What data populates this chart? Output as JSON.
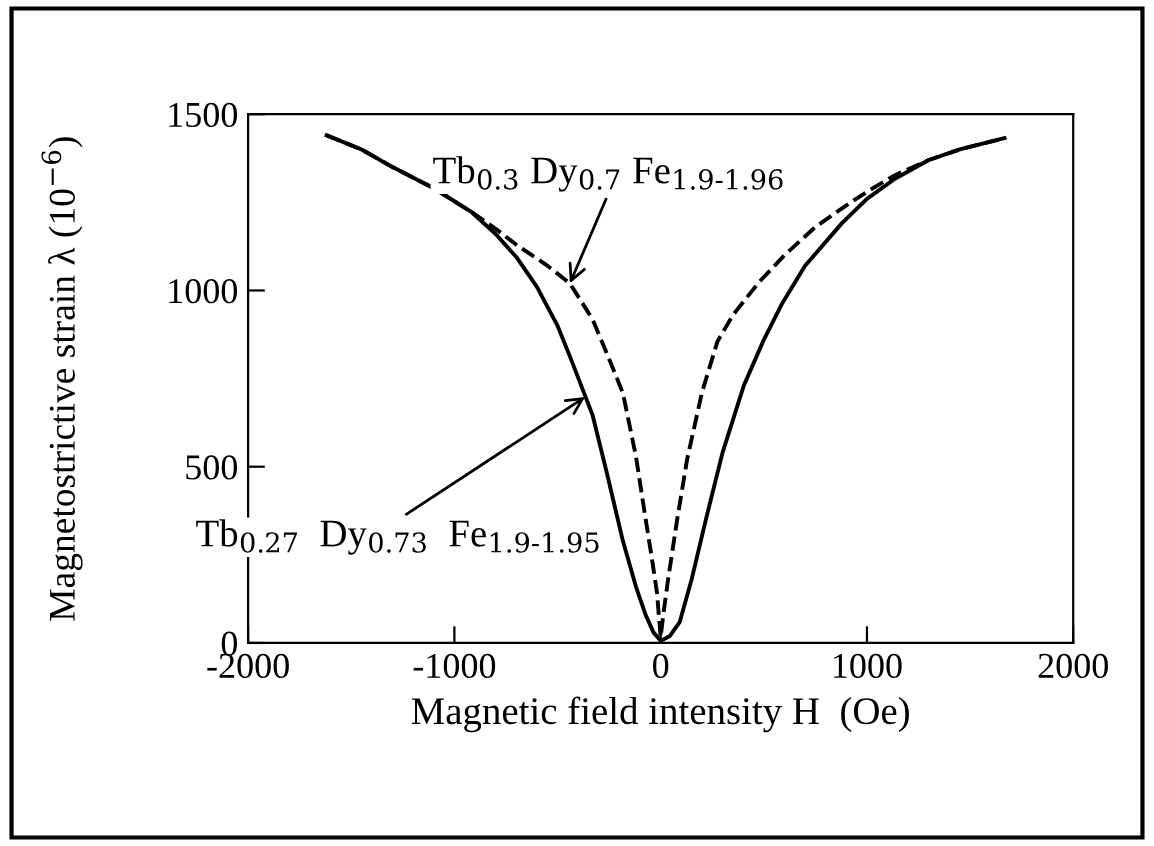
{
  "chart_data": {
    "type": "line",
    "xlabel": "Magnetic field intensity H  (Oe)",
    "ylabel": "Magnetostrictive strain λ (10$^{−6}$)",
    "xlim": [
      -2000,
      2000
    ],
    "ylim": [
      0,
      1500
    ],
    "xticks": [
      -2000,
      -1000,
      0,
      1000,
      2000
    ],
    "yticks": [
      0,
      500,
      1000,
      1500
    ],
    "grid": false,
    "legend": false,
    "marker": "none",
    "series": [
      {
        "color": "#000000",
        "line_style": "solid",
        "x": [
          -1619,
          -1450,
          -1300,
          -1100,
          -916,
          -800,
          -700,
          -600,
          -500,
          -440,
          -366,
          -330,
          -260,
          -183,
          -120,
          -73,
          -35,
          0,
          45,
          92,
          150,
          220,
          300,
          403,
          500,
          586,
          700,
          879,
          1000,
          1136,
          1300,
          1450,
          1667
        ],
        "values": [
          1440,
          1400,
          1350,
          1290,
          1222,
          1160,
          1095,
          1010,
          900,
          813,
          701,
          646,
          480,
          289,
          160,
          80,
          30,
          6,
          20,
          59,
          180,
          352,
          540,
          730,
          860,
          960,
          1070,
          1191,
          1260,
          1317,
          1370,
          1400,
          1432
        ]
      },
      {
        "color": "#000000",
        "line_style": "dashed",
        "x": [
          -1619,
          -1450,
          -1300,
          -1100,
          -916,
          -800,
          -696,
          -560,
          -440,
          -330,
          -260,
          -183,
          -120,
          -73,
          -40,
          -18,
          0,
          15,
          37,
          80,
          128,
          200,
          275,
          350,
          476,
          600,
          750,
          879,
          1000,
          1136,
          1300,
          1450,
          1667
        ],
        "values": [
          1440,
          1400,
          1350,
          1290,
          1222,
          1175,
          1128,
          1075,
          1020,
          918,
          820,
          709,
          530,
          352,
          230,
          143,
          17,
          90,
          184,
          350,
          520,
          710,
          855,
          930,
          1023,
          1100,
          1180,
          1233,
          1280,
          1327,
          1370,
          1400,
          1432
        ]
      }
    ],
    "annotations": [
      {
        "text": "Tb$_{0.3}$ Dy$_{0.7}$ Fe$_{1.9‑1.96}$",
        "x": -440,
        "y": 1020
      },
      {
        "text": "Tb$_{0.27}$  Dy$_{0.73}$  Fe$_{1.9‑1.95}$",
        "x": -366,
        "y": 698
      }
    ]
  }
}
